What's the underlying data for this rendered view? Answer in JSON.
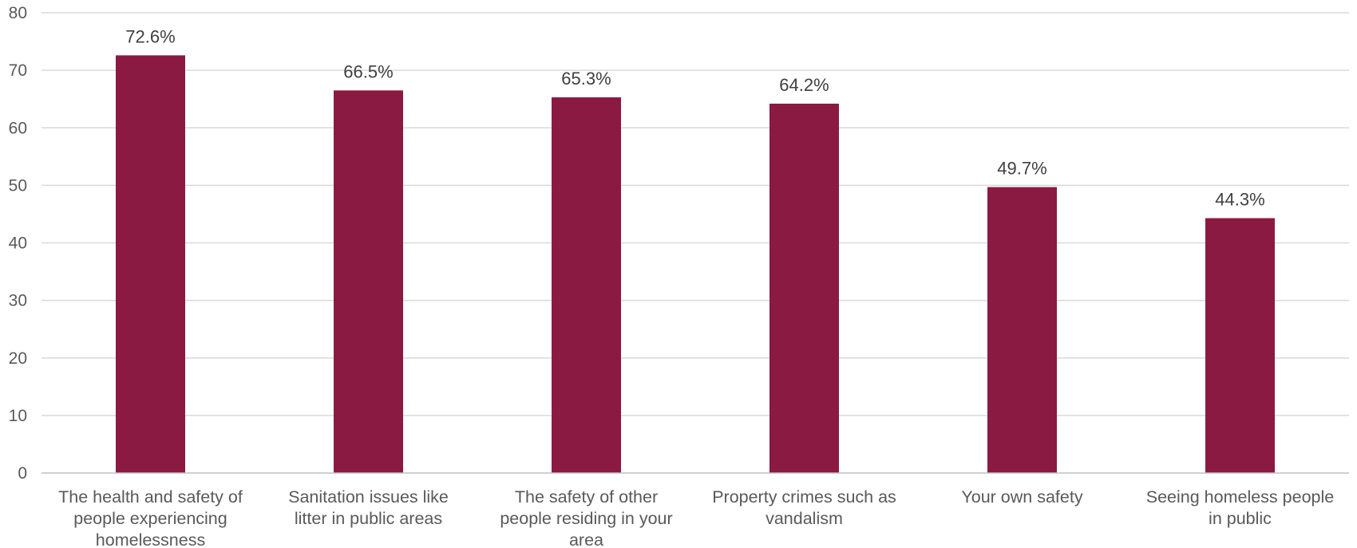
{
  "chart_data": {
    "type": "bar",
    "title": "",
    "xlabel": "",
    "ylabel": "",
    "ylim": [
      0,
      80
    ],
    "y_ticks": [
      0,
      10,
      20,
      30,
      40,
      50,
      60,
      70,
      80
    ],
    "grid": true,
    "legend": "none",
    "bar_color": "#8b1a42",
    "categories": [
      [
        "The health and safety of",
        "people experiencing",
        "homelessness"
      ],
      [
        "Sanitation issues like",
        "litter in public areas"
      ],
      [
        "The safety of other",
        "people residing in your",
        "area"
      ],
      [
        "Property crimes such as",
        "vandalism"
      ],
      [
        "Your own safety"
      ],
      [
        "Seeing homeless people",
        "in public"
      ]
    ],
    "values": [
      72.6,
      66.5,
      65.3,
      64.2,
      49.7,
      44.3
    ],
    "data_labels": [
      "72.6%",
      "66.5%",
      "65.3%",
      "64.2%",
      "49.7%",
      "44.3%"
    ]
  }
}
